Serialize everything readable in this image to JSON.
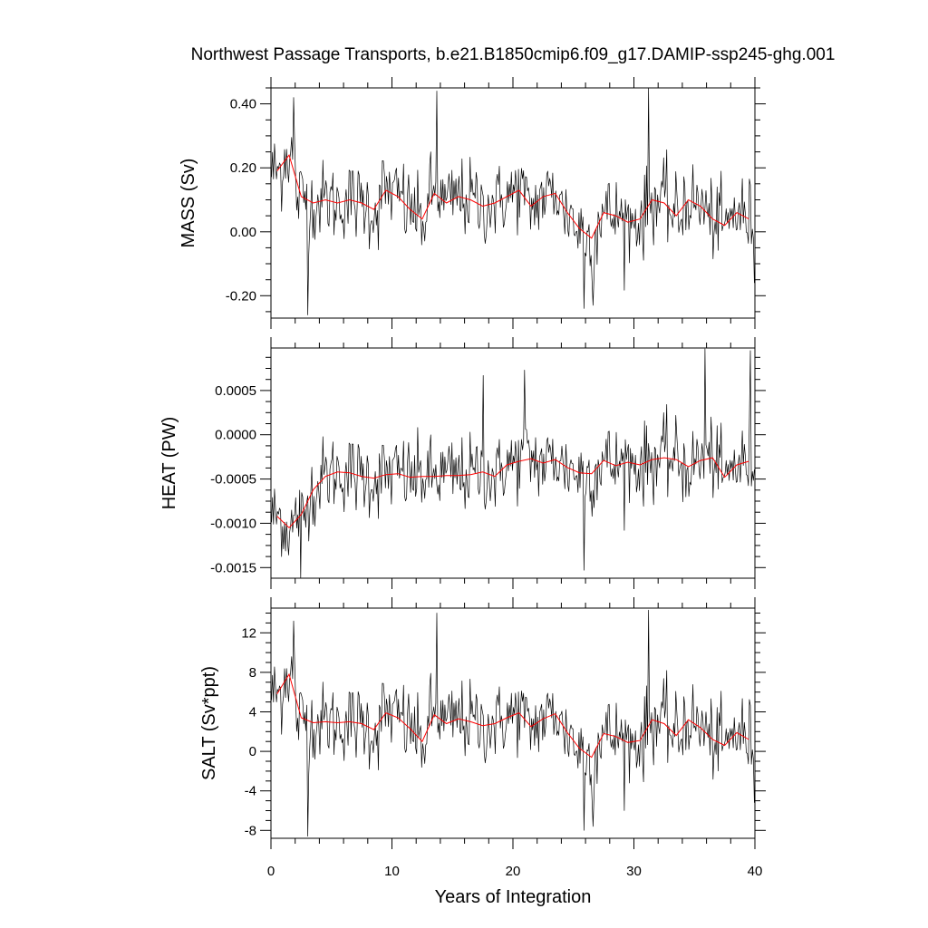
{
  "chart_data": {
    "type": "line",
    "title": "Northwest Passage Transports, b.e21.B1850cmip6.f09_g17.DAMIP-ssp245-ghg.001",
    "xlabel": "Years of Integration",
    "xlim": [
      0,
      40
    ],
    "xticks": [
      "0",
      "10",
      "20",
      "30",
      "40"
    ],
    "colors": {
      "monthly": "#000000",
      "annual": "#ff0000",
      "axes": "#000000"
    },
    "panels": [
      {
        "ylabel": "MASS (Sv)",
        "ylim": [
          -0.27,
          0.45
        ],
        "yticks": [
          0.4,
          0.2,
          0.0,
          -0.2
        ],
        "ytick_labels": [
          "0.40",
          "0.20",
          "0.00",
          "-0.20"
        ],
        "annual_mean": [
          0.19,
          0.24,
          0.11,
          0.09,
          0.1,
          0.09,
          0.1,
          0.09,
          0.07,
          0.13,
          0.11,
          0.07,
          0.04,
          0.12,
          0.09,
          0.11,
          0.1,
          0.08,
          0.09,
          0.11,
          0.13,
          0.08,
          0.11,
          0.12,
          0.06,
          0.01,
          -0.02,
          0.06,
          0.05,
          0.03,
          0.04,
          0.1,
          0.09,
          0.05,
          0.1,
          0.08,
          0.04,
          0.02,
          0.06,
          0.04
        ],
        "monthly_peaks": [
          {
            "x": 1.8,
            "y": 0.42
          },
          {
            "x": 3.0,
            "y": -0.26
          },
          {
            "x": 13.7,
            "y": 0.44
          },
          {
            "x": 25.8,
            "y": -0.24
          },
          {
            "x": 26.6,
            "y": -0.23
          },
          {
            "x": 31.2,
            "y": 0.45
          },
          {
            "x": 39.9,
            "y": -0.16
          }
        ]
      },
      {
        "ylabel": "HEAT (PW)",
        "ylim": [
          -0.00162,
          0.00098
        ],
        "yticks": [
          0.0005,
          0.0,
          -0.0005,
          -0.001,
          -0.0015
        ],
        "ytick_labels": [
          "0.0005",
          "0.0000",
          "-0.0005",
          "-0.0010",
          "-0.0015"
        ],
        "annual_mean": [
          -0.00092,
          -0.00105,
          -0.0009,
          -0.00062,
          -0.00047,
          -0.00042,
          -0.00043,
          -0.00047,
          -0.00049,
          -0.00045,
          -0.00044,
          -0.00048,
          -0.00047,
          -0.00047,
          -0.00046,
          -0.00046,
          -0.00045,
          -0.00042,
          -0.00047,
          -0.00034,
          -0.0003,
          -0.00027,
          -0.00032,
          -0.00028,
          -0.00037,
          -0.00043,
          -0.00044,
          -0.00029,
          -0.00035,
          -0.00031,
          -0.00034,
          -0.00028,
          -0.00026,
          -0.00028,
          -0.00036,
          -0.00029,
          -0.00026,
          -0.00048,
          -0.00034,
          -0.0003
        ],
        "monthly_peaks": [
          {
            "x": 2.4,
            "y": -0.00162
          },
          {
            "x": 25.8,
            "y": -0.00153
          },
          {
            "x": 20.9,
            "y": 0.00073
          },
          {
            "x": 35.8,
            "y": 0.00097
          },
          {
            "x": 39.6,
            "y": 0.00095
          },
          {
            "x": 17.5,
            "y": 0.00067
          }
        ]
      },
      {
        "ylabel": "SALT (Sv*ppt)",
        "ylim": [
          -8.8,
          14.5
        ],
        "yticks": [
          12,
          8,
          4,
          0,
          -4,
          -8
        ],
        "ytick_labels": [
          "12",
          "8",
          "4",
          "0",
          "-4",
          "-8"
        ],
        "annual_mean": [
          5.8,
          7.8,
          3.4,
          2.9,
          3.0,
          2.9,
          3.0,
          2.8,
          2.2,
          3.9,
          3.4,
          2.3,
          1.0,
          3.7,
          2.8,
          3.3,
          3.0,
          2.6,
          2.8,
          3.4,
          3.9,
          2.5,
          3.3,
          3.8,
          1.9,
          0.3,
          -0.6,
          1.8,
          1.5,
          0.9,
          1.1,
          3.2,
          2.8,
          1.6,
          3.2,
          2.4,
          1.2,
          0.6,
          1.9,
          1.2
        ],
        "monthly_peaks": [
          {
            "x": 1.8,
            "y": 13.2
          },
          {
            "x": 3.0,
            "y": -8.6
          },
          {
            "x": 13.7,
            "y": 14.0
          },
          {
            "x": 25.8,
            "y": -8.0
          },
          {
            "x": 26.6,
            "y": -7.6
          },
          {
            "x": 31.2,
            "y": 14.3
          },
          {
            "x": 39.9,
            "y": -5.2
          }
        ]
      }
    ]
  }
}
